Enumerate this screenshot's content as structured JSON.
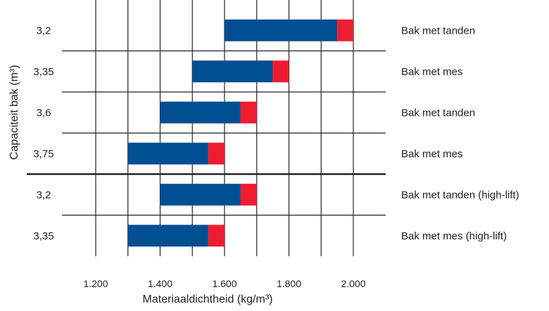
{
  "chart_data": {
    "type": "bar",
    "orientation": "horizontal",
    "stacked": true,
    "xlabel": "Materiaaldichtheid (kg/m³)",
    "ylabel": "Capaciteit bak (m³)",
    "xlim": [
      1100,
      2100
    ],
    "x_ticks": [
      1200,
      1400,
      1600,
      1800,
      2000
    ],
    "x_tick_labels": [
      "1.200",
      "1.400",
      "1.600",
      "1.800",
      "2.000"
    ],
    "grid": true,
    "categories": [
      "3,2",
      "3,35",
      "3,6",
      "3,75",
      "3,2",
      "3,35"
    ],
    "right_labels": [
      "Bak met tanden",
      "Bak met mes",
      "Bak met tanden",
      "Bak met mes",
      "Bak met tanden (high-lift)",
      "Bak met mes (high-lift)"
    ],
    "series": [
      {
        "color": "#004f92",
        "start": [
          1600,
          1500,
          1400,
          1300,
          1400,
          1300
        ],
        "end": [
          1950,
          1750,
          1650,
          1550,
          1650,
          1550
        ]
      },
      {
        "color": "#ee1c2e",
        "start": [
          1950,
          1750,
          1650,
          1550,
          1650,
          1550
        ],
        "end": [
          2000,
          1800,
          1700,
          1600,
          1700,
          1600
        ]
      }
    ],
    "separator_after_row": 4
  }
}
